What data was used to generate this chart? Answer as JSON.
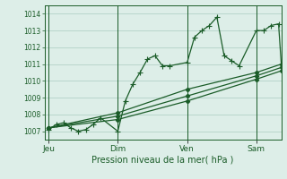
{
  "background_color": "#ddeee8",
  "plot_bg_color": "#ddeee8",
  "grid_color": "#aaccc0",
  "line_color": "#1a5c28",
  "marker_color": "#1a5c28",
  "xlabel": "Pression niveau de la mer( hPa )",
  "ylim": [
    1006.5,
    1014.5
  ],
  "yticks": [
    1007,
    1008,
    1009,
    1010,
    1011,
    1012,
    1013,
    1014
  ],
  "day_labels": [
    "Jeu",
    "Dim",
    "Ven",
    "Sam"
  ],
  "day_positions": [
    0,
    0.333,
    0.667,
    1.0
  ],
  "xlim": [
    -0.02,
    1.12
  ],
  "series1_x": [
    0.0,
    0.036,
    0.071,
    0.107,
    0.143,
    0.179,
    0.214,
    0.25,
    0.333,
    0.369,
    0.405,
    0.44,
    0.476,
    0.512,
    0.548,
    0.583,
    0.667,
    0.702,
    0.738,
    0.774,
    0.81,
    0.845,
    0.881,
    0.917,
    1.0,
    1.036,
    1.071,
    1.107,
    1.12
  ],
  "series1_y": [
    1007.1,
    1007.4,
    1007.5,
    1007.2,
    1007.0,
    1007.1,
    1007.4,
    1007.8,
    1007.0,
    1008.8,
    1009.8,
    1010.5,
    1011.3,
    1011.5,
    1010.9,
    1010.9,
    1011.1,
    1012.6,
    1013.0,
    1013.3,
    1013.8,
    1011.5,
    1011.2,
    1010.9,
    1013.0,
    1013.0,
    1013.3,
    1013.4,
    1011.0
  ],
  "series2_x": [
    0.0,
    0.333,
    0.667,
    1.0,
    1.12
  ],
  "series2_y": [
    1007.2,
    1008.1,
    1009.5,
    1010.5,
    1011.0
  ],
  "series3_x": [
    0.0,
    0.333,
    0.667,
    1.0,
    1.12
  ],
  "series3_y": [
    1007.2,
    1007.9,
    1009.1,
    1010.3,
    1010.8
  ],
  "series4_x": [
    0.0,
    0.333,
    0.667,
    1.0,
    1.12
  ],
  "series4_y": [
    1007.2,
    1007.7,
    1008.8,
    1010.1,
    1010.6
  ]
}
